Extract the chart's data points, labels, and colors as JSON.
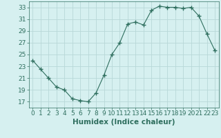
{
  "x": [
    0,
    1,
    2,
    3,
    4,
    5,
    6,
    7,
    8,
    9,
    10,
    11,
    12,
    13,
    14,
    15,
    16,
    17,
    18,
    19,
    20,
    21,
    22,
    23
  ],
  "y": [
    24.0,
    22.5,
    21.0,
    19.5,
    19.0,
    17.5,
    17.2,
    17.0,
    18.5,
    21.5,
    25.0,
    27.0,
    30.2,
    30.5,
    30.0,
    32.5,
    33.2,
    33.0,
    33.0,
    32.8,
    33.0,
    31.5,
    28.5,
    25.7
  ],
  "line_color": "#2e6e5e",
  "marker": "D",
  "marker_size": 2,
  "bg_color": "#d6f0f0",
  "grid_color": "#b8d8d8",
  "xlabel": "Humidex (Indice chaleur)",
  "ylim": [
    16,
    34
  ],
  "xlim": [
    -0.5,
    23.5
  ],
  "yticks": [
    17,
    19,
    21,
    23,
    25,
    27,
    29,
    31,
    33
  ],
  "xticks": [
    0,
    1,
    2,
    3,
    4,
    5,
    6,
    7,
    8,
    9,
    10,
    11,
    12,
    13,
    14,
    15,
    16,
    17,
    18,
    19,
    20,
    21,
    22,
    23
  ],
  "xlabel_fontsize": 7.5,
  "tick_fontsize": 6.5
}
